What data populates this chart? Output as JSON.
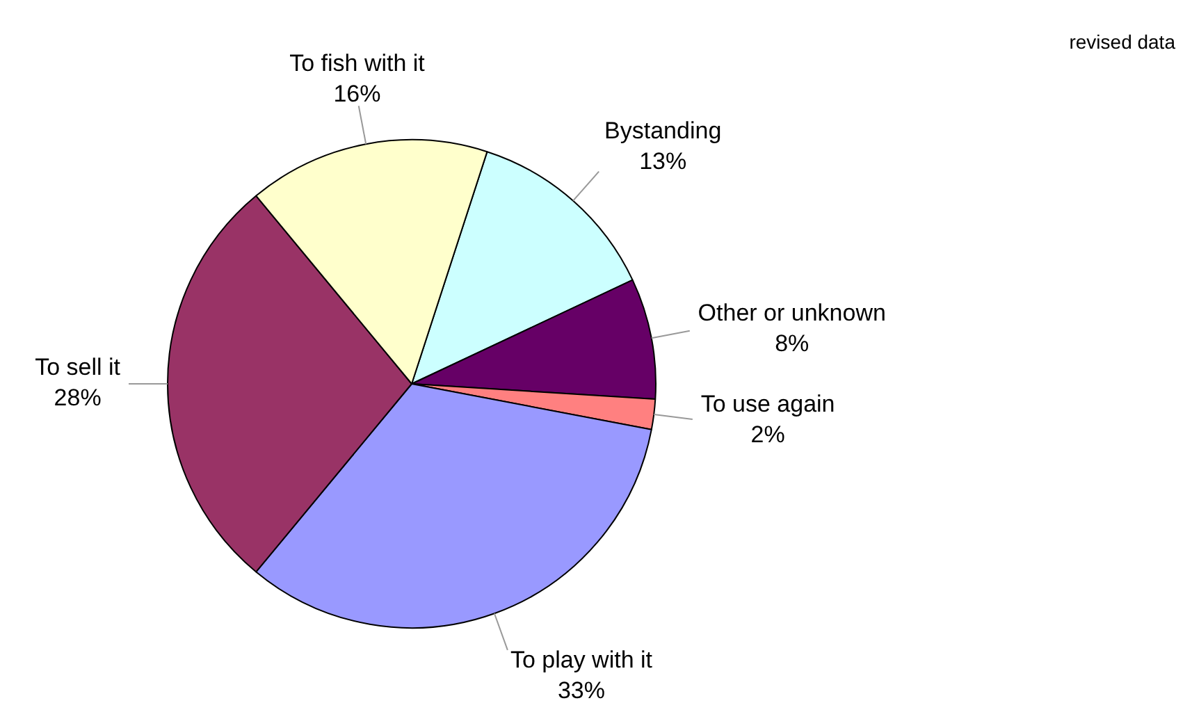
{
  "chart_data": {
    "type": "pie",
    "categories": [
      "Bystanding",
      "Other or unknown",
      "To use again",
      "To play with it",
      "To sell it",
      "To fish with it"
    ],
    "values": [
      13,
      8,
      2,
      33,
      28,
      16
    ],
    "colors": [
      "#ccffff",
      "#660066",
      "#ff8080",
      "#9999ff",
      "#993366",
      "#ffffcc"
    ],
    "value_labels": [
      "13%",
      "8%",
      "2%",
      "33%",
      "28%",
      "16%"
    ],
    "legend": false,
    "annotations": [
      "revised data"
    ]
  }
}
